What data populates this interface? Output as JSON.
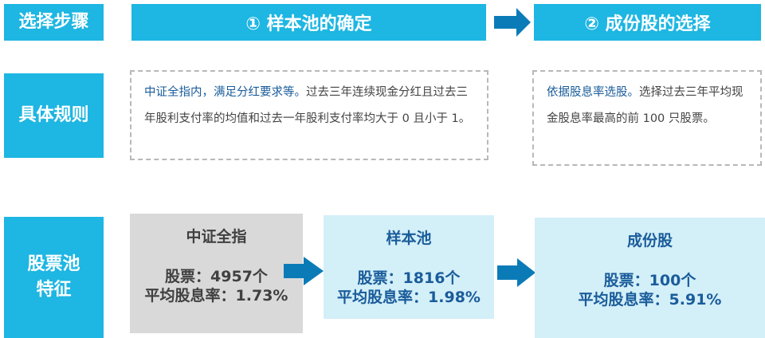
{
  "row_labels": {
    "steps": "选择步骤",
    "rules": "具体规则",
    "pool_features": "股票池特征"
  },
  "headers": {
    "step1": "① 样本池的确定",
    "step2": "② 成份股的选择"
  },
  "rules": {
    "step1_highlight": "中证全指内，满足分红要求等。",
    "step1_text": "过去三年连续现金分红且过去三年股利支付率的均值和过去一年股利支付率均大于 0 且小于 1。",
    "step2_highlight": "依据股息率选股。",
    "step2_text": "选择过去三年平均现金股息率最高的前 100 只股票。"
  },
  "pools": [
    {
      "title": "中证全指",
      "stocks": "股票：4957个",
      "yield": "平均股息率：1.73%"
    },
    {
      "title": "样本池",
      "stocks": "股票：1816个",
      "yield": "平均股息率：1.98%"
    },
    {
      "title": "成份股",
      "stocks": "股票：100个",
      "yield": "平均股息率：5.91%"
    }
  ],
  "colors": {
    "accent": "#1eb6e2",
    "arrow": "#0b7bb8",
    "light_box": "#d3eff8",
    "gray_box": "#d9d9d9",
    "blue_text": "#1a5c9a"
  }
}
